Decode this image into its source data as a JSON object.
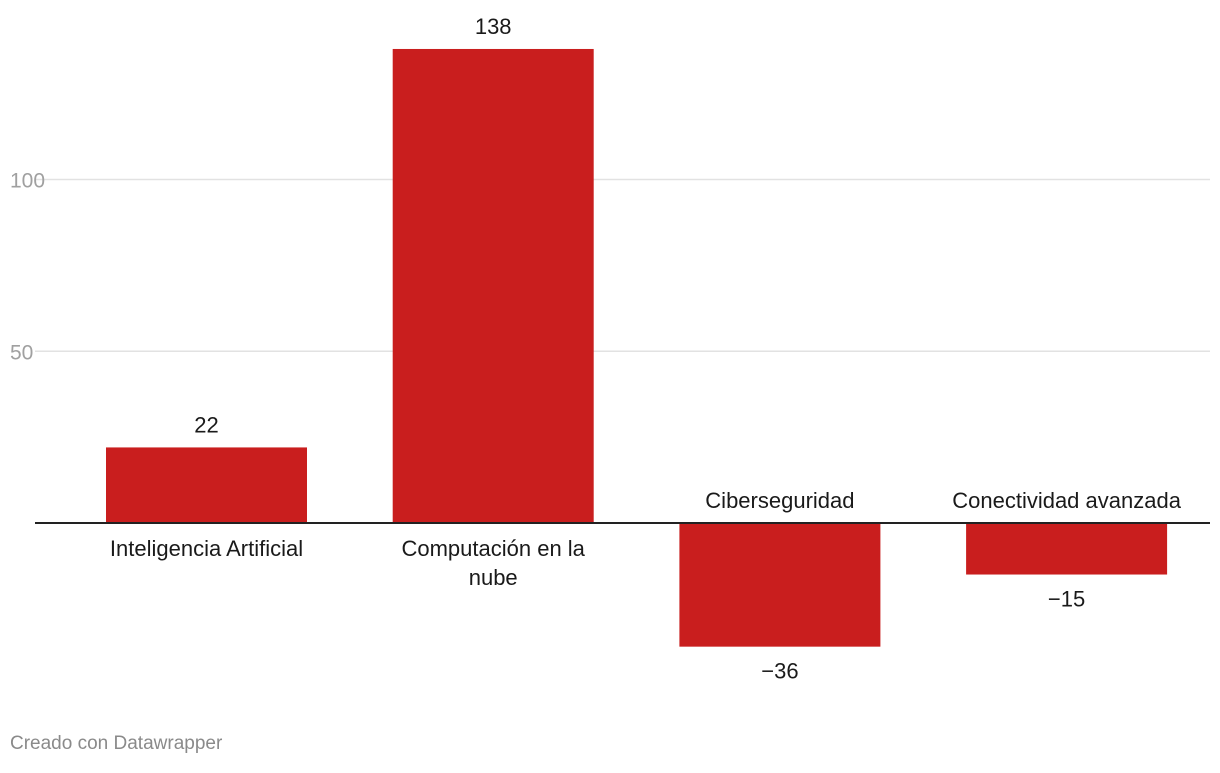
{
  "chart_data": {
    "type": "bar",
    "categories": [
      "Inteligencia Artificial",
      "Computación en la nube",
      "Ciberseguridad",
      "Conectividad avanzada"
    ],
    "category_lines": [
      [
        "Inteligencia Artificial"
      ],
      [
        "Computación en la",
        "nube"
      ],
      [
        "Ciberseguridad"
      ],
      [
        "Conectividad avanzada"
      ]
    ],
    "values": [
      22,
      138,
      -36,
      -15
    ],
    "value_labels": [
      "22",
      "138",
      "−36",
      "−15"
    ],
    "y_ticks": [
      50,
      100
    ],
    "y_tick_labels": [
      "50",
      "100"
    ],
    "ylim": [
      -36,
      138
    ],
    "grid": true,
    "bar_color": "#c91e1e",
    "title": "",
    "xlabel": "",
    "ylabel": ""
  },
  "footer": {
    "credit": "Creado con Datawrapper"
  }
}
